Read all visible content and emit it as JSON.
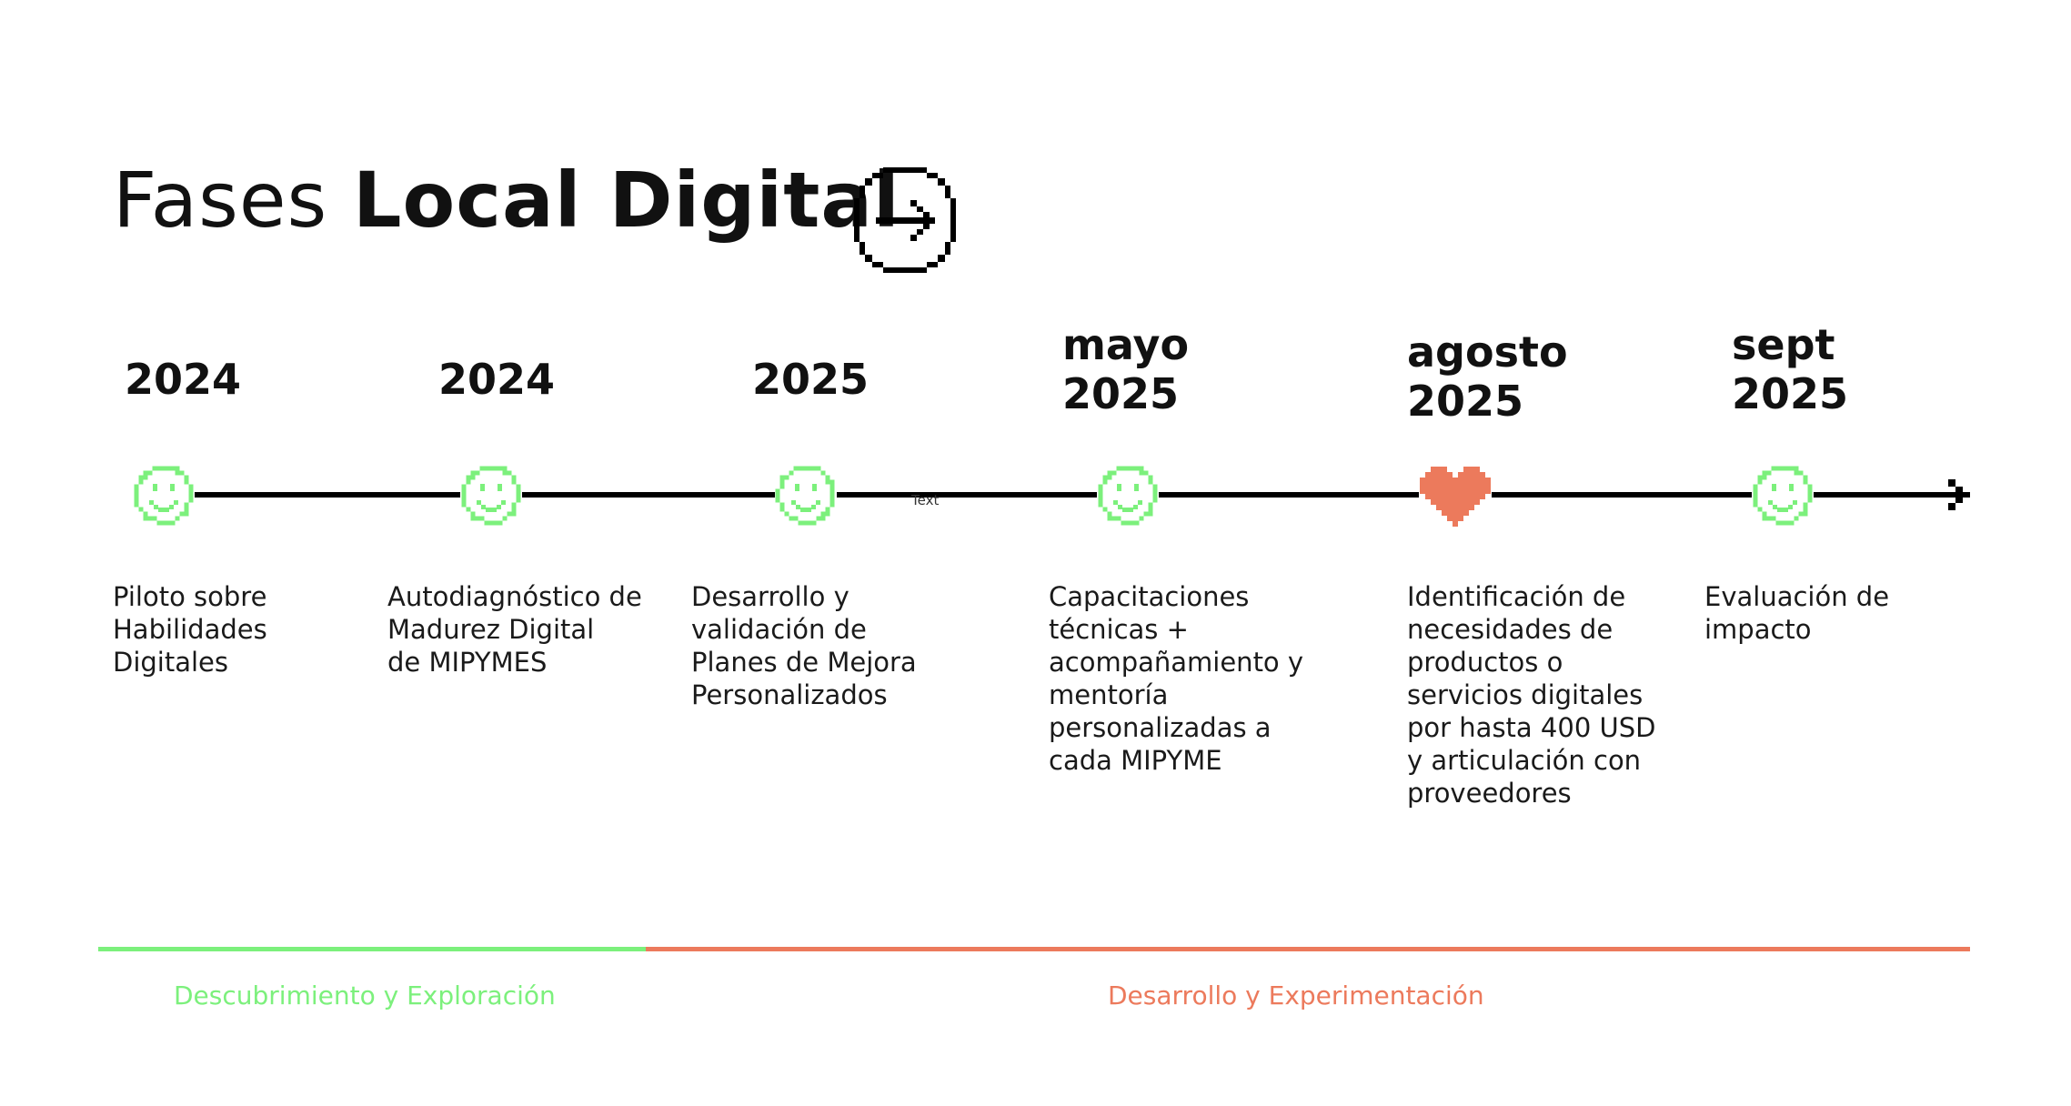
{
  "header": {
    "title_light": "Fases",
    "title_bold": "Local Digital",
    "icon": "arrow-right-circle-icon"
  },
  "milestones": [
    {
      "month": "",
      "year": "2024",
      "marker": "smiley-icon",
      "description": "Piloto sobre\nHabilidades\nDigitales"
    },
    {
      "month": "",
      "year": "2024",
      "marker": "smiley-icon",
      "description": "Autodiagnóstico de\nMadurez Digital\nde MIPYMES"
    },
    {
      "month": "",
      "year": "2025",
      "marker": "smiley-icon",
      "description": "Desarrollo y\nvalidación de\nPlanes de Mejora\nPersonalizados"
    },
    {
      "month": "mayo",
      "year": "2025",
      "marker": "smiley-icon",
      "description": "Capacitaciones\ntécnicas +\nacompañamiento y\nmentoría\npersonalizadas a\ncada MIPYME"
    },
    {
      "month": "agosto",
      "year": "2025",
      "marker": "heart-icon",
      "description": "Identificación de\nnecesidades de\nproductos o\nservicios digitales\npor hasta 400 USD\ny articulación con\nproveedores"
    },
    {
      "month": "sept",
      "year": "2025",
      "marker": "smiley-icon",
      "description": "Evaluación de\nimpacto"
    }
  ],
  "stray_label": "Text",
  "phases": [
    {
      "label": "Descubrimiento y Exploración",
      "color": "#7CF07C"
    },
    {
      "label": "Desarrollo y Experimentación",
      "color": "#EC7A5C"
    }
  ],
  "colors": {
    "smiley": "#7CF07C",
    "heart": "#EC7A5C",
    "line": "#000000"
  }
}
